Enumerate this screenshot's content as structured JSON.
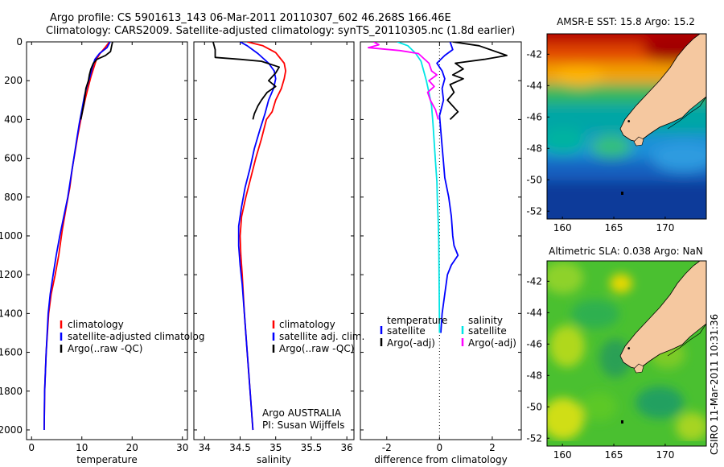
{
  "header": {
    "line1": "Argo profile: CS 5901613_143 06-Mar-2011 20110307_602 46.268S 166.46E",
    "line2": "Climatology: CARS2009. Satellite-adjusted climatology: synTS_20110305.nc (1.8d earlier)"
  },
  "side_label": "CSIRO 11-Mar-2011 10:31:36",
  "argo_credit": {
    "line1": "Argo AUSTRALIA",
    "line2": "PI: Susan Wijffels"
  },
  "colors": {
    "climatology": "#ff0000",
    "satellite": "#0000ff",
    "argo": "#000000",
    "sat_salinity": "#00e5e5",
    "argo_salinity_adj": "#ff00ff",
    "land": "#f5c8a0"
  },
  "chart_data": [
    {
      "type": "line",
      "name": "temperature-profile",
      "xlabel": "temperature",
      "ylabel": "",
      "xlim": [
        -1,
        31
      ],
      "ylim": [
        0,
        2050
      ],
      "y_inverted": true,
      "xticks": [
        0,
        10,
        20,
        30
      ],
      "yticks": [
        0,
        200,
        400,
        600,
        800,
        1000,
        1200,
        1400,
        1600,
        1800,
        2000
      ],
      "legend": [
        "climatology",
        "satellite-adjusted climatolog",
        "Argo(..raw -QC)"
      ],
      "legend_placement": "lower-right",
      "series": [
        {
          "name": "climatology",
          "color": "#ff0000",
          "points": [
            [
              15.5,
              0
            ],
            [
              14.6,
              30
            ],
            [
              13.6,
              60
            ],
            [
              12.9,
              90
            ],
            [
              12.4,
              130
            ],
            [
              11.8,
              180
            ],
            [
              11.3,
              230
            ],
            [
              10.8,
              280
            ],
            [
              10.2,
              350
            ],
            [
              9.8,
              400
            ],
            [
              9.2,
              480
            ],
            [
              8.7,
              560
            ],
            [
              8.1,
              650
            ],
            [
              7.6,
              750
            ],
            [
              6.9,
              850
            ],
            [
              6.1,
              970
            ],
            [
              5.4,
              1100
            ],
            [
              4.7,
              1200
            ],
            [
              3.9,
              1300
            ],
            [
              3.4,
              1400
            ],
            [
              2.9,
              1600
            ],
            [
              2.6,
              1800
            ],
            [
              2.5,
              2000
            ]
          ]
        },
        {
          "name": "satellite-adjusted climatolog",
          "color": "#0000ff",
          "points": [
            [
              15.6,
              0
            ],
            [
              15.0,
              30
            ],
            [
              13.5,
              60
            ],
            [
              12.6,
              90
            ],
            [
              12.1,
              130
            ],
            [
              11.6,
              180
            ],
            [
              11.0,
              230
            ],
            [
              10.5,
              280
            ],
            [
              10.0,
              350
            ],
            [
              9.5,
              420
            ],
            [
              9.0,
              500
            ],
            [
              8.4,
              600
            ],
            [
              7.8,
              700
            ],
            [
              7.2,
              800
            ],
            [
              6.4,
              900
            ],
            [
              5.6,
              1000
            ],
            [
              4.9,
              1100
            ],
            [
              4.3,
              1200
            ],
            [
              3.7,
              1300
            ],
            [
              3.3,
              1400
            ],
            [
              2.9,
              1600
            ],
            [
              2.6,
              1800
            ],
            [
              2.5,
              2000
            ]
          ]
        },
        {
          "name": "Argo(..raw -QC)",
          "color": "#000000",
          "points": [
            [
              16.1,
              0
            ],
            [
              15.9,
              25
            ],
            [
              15.7,
              50
            ],
            [
              14.7,
              70
            ],
            [
              13.0,
              90
            ],
            [
              12.3,
              110
            ],
            [
              11.8,
              140
            ],
            [
              11.5,
              170
            ],
            [
              11.3,
              200
            ],
            [
              10.8,
              240
            ],
            [
              10.6,
              280
            ],
            [
              10.4,
              320
            ],
            [
              10.1,
              360
            ],
            [
              9.8,
              400
            ]
          ]
        }
      ]
    },
    {
      "type": "line",
      "name": "salinity-profile",
      "xlabel": "salinity",
      "ylabel": "",
      "xlim": [
        33.85,
        36.1
      ],
      "ylim": [
        0,
        2050
      ],
      "y_inverted": true,
      "xticks": [
        34,
        34.5,
        35,
        35.5,
        36
      ],
      "legend": [
        "climatology",
        "satellite adj. clim.",
        "Argo(..raw -QC)"
      ],
      "legend_placement": "lower-right",
      "series": [
        {
          "name": "climatology",
          "color": "#ff0000",
          "points": [
            [
              34.6,
              0
            ],
            [
              34.82,
              20
            ],
            [
              35.0,
              55
            ],
            [
              35.12,
              110
            ],
            [
              35.14,
              150
            ],
            [
              35.12,
              190
            ],
            [
              35.08,
              240
            ],
            [
              35.0,
              300
            ],
            [
              34.95,
              360
            ],
            [
              34.87,
              400
            ],
            [
              34.8,
              500
            ],
            [
              34.72,
              600
            ],
            [
              34.65,
              700
            ],
            [
              34.58,
              800
            ],
            [
              34.52,
              900
            ],
            [
              34.5,
              1000
            ],
            [
              34.51,
              1100
            ],
            [
              34.53,
              1200
            ],
            [
              34.56,
              1400
            ],
            [
              34.6,
              1600
            ],
            [
              34.64,
              1800
            ],
            [
              34.68,
              2000
            ]
          ]
        },
        {
          "name": "satellite adj. clim.",
          "color": "#0000ff",
          "points": [
            [
              34.5,
              0
            ],
            [
              34.6,
              20
            ],
            [
              34.75,
              60
            ],
            [
              34.9,
              110
            ],
            [
              34.98,
              150
            ],
            [
              35.0,
              190
            ],
            [
              34.97,
              240
            ],
            [
              34.9,
              300
            ],
            [
              34.85,
              370
            ],
            [
              34.78,
              450
            ],
            [
              34.7,
              550
            ],
            [
              34.64,
              650
            ],
            [
              34.57,
              750
            ],
            [
              34.52,
              850
            ],
            [
              34.48,
              950
            ],
            [
              34.48,
              1050
            ],
            [
              34.5,
              1150
            ],
            [
              34.53,
              1250
            ],
            [
              34.56,
              1400
            ],
            [
              34.6,
              1600
            ],
            [
              34.64,
              1800
            ],
            [
              34.68,
              2000
            ]
          ]
        },
        {
          "name": "Argo(..raw -QC)",
          "color": "#000000",
          "points": [
            [
              34.12,
              0
            ],
            [
              34.15,
              40
            ],
            [
              34.15,
              80
            ],
            [
              34.5,
              90
            ],
            [
              34.8,
              100
            ],
            [
              35.05,
              130
            ],
            [
              35.0,
              160
            ],
            [
              34.9,
              200
            ],
            [
              35.0,
              230
            ],
            [
              34.88,
              260
            ],
            [
              34.8,
              300
            ],
            [
              34.75,
              330
            ],
            [
              34.7,
              370
            ],
            [
              34.68,
              400
            ]
          ]
        }
      ]
    },
    {
      "type": "line",
      "name": "difference-profile",
      "xlabel": "difference from climatology",
      "ylabel": "",
      "xlim": [
        -3,
        3.1
      ],
      "ylim": [
        0,
        2050
      ],
      "y_inverted": true,
      "xticks": [
        -2,
        0,
        2
      ],
      "legend": [
        "temperature",
        "satellite",
        "Argo(-adj)",
        "salinity",
        "satellite",
        "Argo(-adj)"
      ],
      "legend_placement": "lower",
      "series": [
        {
          "name": "temperature satellite",
          "color": "#0000ff",
          "points": [
            [
              0.4,
              0
            ],
            [
              0.5,
              40
            ],
            [
              0.2,
              70
            ],
            [
              -0.1,
              110
            ],
            [
              0.1,
              150
            ],
            [
              0.2,
              190
            ],
            [
              0.1,
              240
            ],
            [
              0.15,
              300
            ],
            [
              0.0,
              380
            ],
            [
              0.05,
              460
            ],
            [
              0.1,
              540
            ],
            [
              0.15,
              620
            ],
            [
              0.2,
              700
            ],
            [
              0.35,
              800
            ],
            [
              0.45,
              900
            ],
            [
              0.5,
              1000
            ],
            [
              0.55,
              1050
            ],
            [
              0.7,
              1100
            ],
            [
              0.45,
              1150
            ],
            [
              0.3,
              1200
            ],
            [
              0.2,
              1300
            ],
            [
              0.1,
              1400
            ],
            [
              0.05,
              1500
            ]
          ]
        },
        {
          "name": "temperature Argo(-adj)",
          "color": "#000000",
          "points": [
            [
              0.5,
              0
            ],
            [
              1.5,
              20
            ],
            [
              2.55,
              70
            ],
            [
              1.7,
              90
            ],
            [
              0.6,
              110
            ],
            [
              0.9,
              140
            ],
            [
              0.5,
              170
            ],
            [
              0.9,
              190
            ],
            [
              0.4,
              220
            ],
            [
              0.55,
              260
            ],
            [
              0.3,
              300
            ],
            [
              0.7,
              360
            ],
            [
              0.4,
              400
            ]
          ]
        },
        {
          "name": "salinity satellite",
          "color": "#00e5e5",
          "points": [
            [
              -1.6,
              0
            ],
            [
              -1.2,
              20
            ],
            [
              -0.9,
              60
            ],
            [
              -0.7,
              100
            ],
            [
              -0.6,
              150
            ],
            [
              -0.5,
              200
            ],
            [
              -0.4,
              260
            ],
            [
              -0.3,
              330
            ],
            [
              -0.25,
              420
            ],
            [
              -0.2,
              520
            ],
            [
              -0.15,
              620
            ],
            [
              -0.1,
              720
            ],
            [
              -0.08,
              820
            ],
            [
              -0.05,
              920
            ],
            [
              -0.03,
              1020
            ],
            [
              -0.02,
              1150
            ],
            [
              -0.01,
              1300
            ],
            [
              0.0,
              1500
            ]
          ]
        },
        {
          "name": "salinity Argo(-adj)",
          "color": "#ff00ff",
          "points": [
            [
              -2.5,
              0
            ],
            [
              -2.3,
              15
            ],
            [
              -2.7,
              30
            ],
            [
              -1.5,
              45
            ],
            [
              -0.8,
              60
            ],
            [
              -0.4,
              110
            ],
            [
              -0.3,
              150
            ],
            [
              -0.1,
              170
            ],
            [
              -0.4,
              200
            ],
            [
              -0.2,
              230
            ],
            [
              -0.45,
              260
            ],
            [
              -0.35,
              300
            ],
            [
              -0.15,
              350
            ],
            [
              -0.05,
              400
            ]
          ]
        }
      ]
    },
    {
      "type": "heatmap",
      "name": "sst-map",
      "title": "AMSR-E SST: 15.8 Argo: 15.2",
      "xlim": [
        158.5,
        174
      ],
      "ylim": [
        -52.5,
        -40.7
      ],
      "xticks": [
        160,
        165,
        170
      ],
      "yticks": [
        -42,
        -44,
        -46,
        -48,
        -50,
        -52
      ],
      "marker": [
        166.46,
        -46.268
      ]
    },
    {
      "type": "heatmap",
      "name": "sla-map",
      "title": "Altimetric SLA: 0.038 Argo: NaN",
      "xlim": [
        158.5,
        174
      ],
      "ylim": [
        -52.5,
        -40.7
      ],
      "xticks": [
        160,
        165,
        170
      ],
      "yticks": [
        -42,
        -44,
        -46,
        -48,
        -50,
        -52
      ],
      "marker": [
        166.46,
        -46.268
      ]
    }
  ]
}
